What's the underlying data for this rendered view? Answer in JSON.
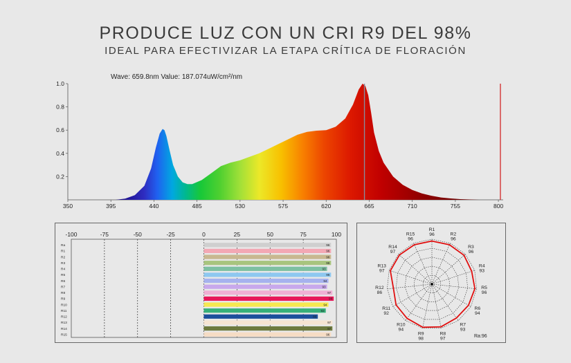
{
  "header": {
    "title": "PRODUCE LUZ CON UN CRI R9 DEL 98%",
    "subtitle": "IDEAL PARA EFECTIVIZAR LA ETAPA CRÍTICA DE FLORACIÓN"
  },
  "chart_data": [
    {
      "type": "area",
      "readout": "Wave: 659.8nm Value: 187.074uW/cm²/nm",
      "x_ticks": [
        "350",
        "395",
        "440",
        "485",
        "530",
        "575",
        "620",
        "665",
        "710",
        "755",
        "800"
      ],
      "y_ticks": [
        "0.2",
        "0.4",
        "0.6",
        "0.8",
        "1.0"
      ],
      "xlim": [
        350,
        805
      ],
      "ylim": [
        0,
        1.0
      ],
      "cursor_x": 660,
      "x": [
        360,
        400,
        410,
        420,
        430,
        437,
        442,
        446,
        449,
        451,
        453,
        456,
        460,
        465,
        470,
        475,
        480,
        490,
        500,
        510,
        520,
        530,
        540,
        550,
        560,
        570,
        580,
        590,
        600,
        610,
        620,
        630,
        640,
        648,
        654,
        658,
        661,
        664,
        667,
        670,
        675,
        680,
        690,
        700,
        710,
        720,
        730,
        740,
        750,
        760,
        770,
        780
      ],
      "y": [
        0,
        0,
        0.01,
        0.04,
        0.12,
        0.27,
        0.45,
        0.57,
        0.61,
        0.6,
        0.55,
        0.44,
        0.3,
        0.2,
        0.15,
        0.135,
        0.135,
        0.17,
        0.23,
        0.29,
        0.32,
        0.34,
        0.37,
        0.4,
        0.44,
        0.48,
        0.52,
        0.56,
        0.585,
        0.595,
        0.6,
        0.63,
        0.7,
        0.82,
        0.95,
        1.0,
        0.98,
        0.9,
        0.75,
        0.58,
        0.42,
        0.32,
        0.2,
        0.13,
        0.085,
        0.055,
        0.035,
        0.02,
        0.012,
        0.006,
        0.003,
        0
      ]
    },
    {
      "type": "bar",
      "orientation": "horizontal",
      "x_ticks": [
        "-100",
        "-75",
        "-50",
        "-25",
        "0",
        "25",
        "50",
        "75",
        "100"
      ],
      "xlim": [
        -100,
        100
      ],
      "categories": [
        "Ra",
        "R1",
        "R2",
        "R3",
        "R4",
        "R5",
        "R6",
        "R7",
        "R8",
        "R9",
        "R10",
        "R11",
        "R12",
        "R13",
        "R14",
        "R15"
      ],
      "values": [
        96,
        96,
        96,
        96,
        93,
        96,
        94,
        93,
        97,
        98,
        94,
        92,
        86,
        97,
        97,
        96
      ],
      "colors": [
        "#cfcfcf",
        "#f3a8b4",
        "#c8b890",
        "#a8c47e",
        "#7ec0a2",
        "#8ec8f0",
        "#a6b2ee",
        "#c8a8ec",
        "#f0b0d4",
        "#e8185a",
        "#f6e850",
        "#36b07a",
        "#1b4f9c",
        "#f6e4d2",
        "#6e7a3e",
        "#f6dcc4"
      ]
    },
    {
      "type": "radar",
      "labels": [
        "R1",
        "R2",
        "R3",
        "R4",
        "R5",
        "R6",
        "R7",
        "R8",
        "R9",
        "R10",
        "R11",
        "R12",
        "R13",
        "R14",
        "R15"
      ],
      "values": [
        96,
        96,
        96,
        93,
        96,
        94,
        93,
        97,
        98,
        94,
        92,
        86,
        97,
        97,
        96
      ],
      "value_labels": [
        "96",
        "96",
        "96",
        "93",
        "96",
        "94",
        "93",
        "97",
        "98",
        "94",
        "92",
        "86",
        "97",
        "97",
        "96"
      ],
      "ra_label": "Ra:96",
      "rings": 5
    }
  ]
}
